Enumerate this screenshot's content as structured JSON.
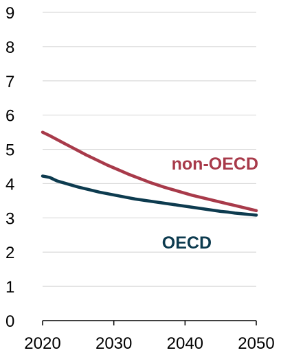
{
  "chart_data": {
    "type": "line",
    "title": "",
    "xlabel": "",
    "ylabel": "",
    "xlim": [
      2020,
      2050
    ],
    "ylim": [
      0,
      9
    ],
    "x_ticks": [
      2020,
      2030,
      2040,
      2050
    ],
    "y_ticks": [
      0,
      1,
      2,
      3,
      4,
      5,
      6,
      7,
      8,
      9
    ],
    "grid": "horizontal",
    "legend": "inline labels",
    "series": [
      {
        "name": "non-OECD",
        "color": "#a83a4a",
        "x": [
          2020,
          2021,
          2022,
          2023,
          2024,
          2025,
          2026,
          2027,
          2028,
          2029,
          2030,
          2031,
          2032,
          2033,
          2034,
          2035,
          2036,
          2037,
          2038,
          2039,
          2040,
          2041,
          2042,
          2043,
          2044,
          2045,
          2046,
          2047,
          2048,
          2049,
          2050
        ],
        "y": [
          5.5,
          5.4,
          5.29,
          5.18,
          5.07,
          4.96,
          4.85,
          4.75,
          4.65,
          4.55,
          4.46,
          4.37,
          4.28,
          4.2,
          4.12,
          4.04,
          3.97,
          3.9,
          3.84,
          3.78,
          3.72,
          3.66,
          3.61,
          3.56,
          3.51,
          3.46,
          3.41,
          3.36,
          3.31,
          3.26,
          3.21
        ]
      },
      {
        "name": "OECD",
        "color": "#0d3b4f",
        "x": [
          2020,
          2021,
          2022,
          2023,
          2024,
          2025,
          2026,
          2027,
          2028,
          2029,
          2030,
          2031,
          2032,
          2033,
          2034,
          2035,
          2036,
          2037,
          2038,
          2039,
          2040,
          2041,
          2042,
          2043,
          2044,
          2045,
          2046,
          2047,
          2048,
          2049,
          2050
        ],
        "y": [
          4.22,
          4.18,
          4.08,
          4.02,
          3.96,
          3.9,
          3.85,
          3.8,
          3.75,
          3.71,
          3.67,
          3.63,
          3.59,
          3.55,
          3.52,
          3.49,
          3.46,
          3.43,
          3.4,
          3.37,
          3.34,
          3.31,
          3.28,
          3.25,
          3.22,
          3.19,
          3.17,
          3.14,
          3.12,
          3.1,
          3.08
        ]
      }
    ]
  }
}
